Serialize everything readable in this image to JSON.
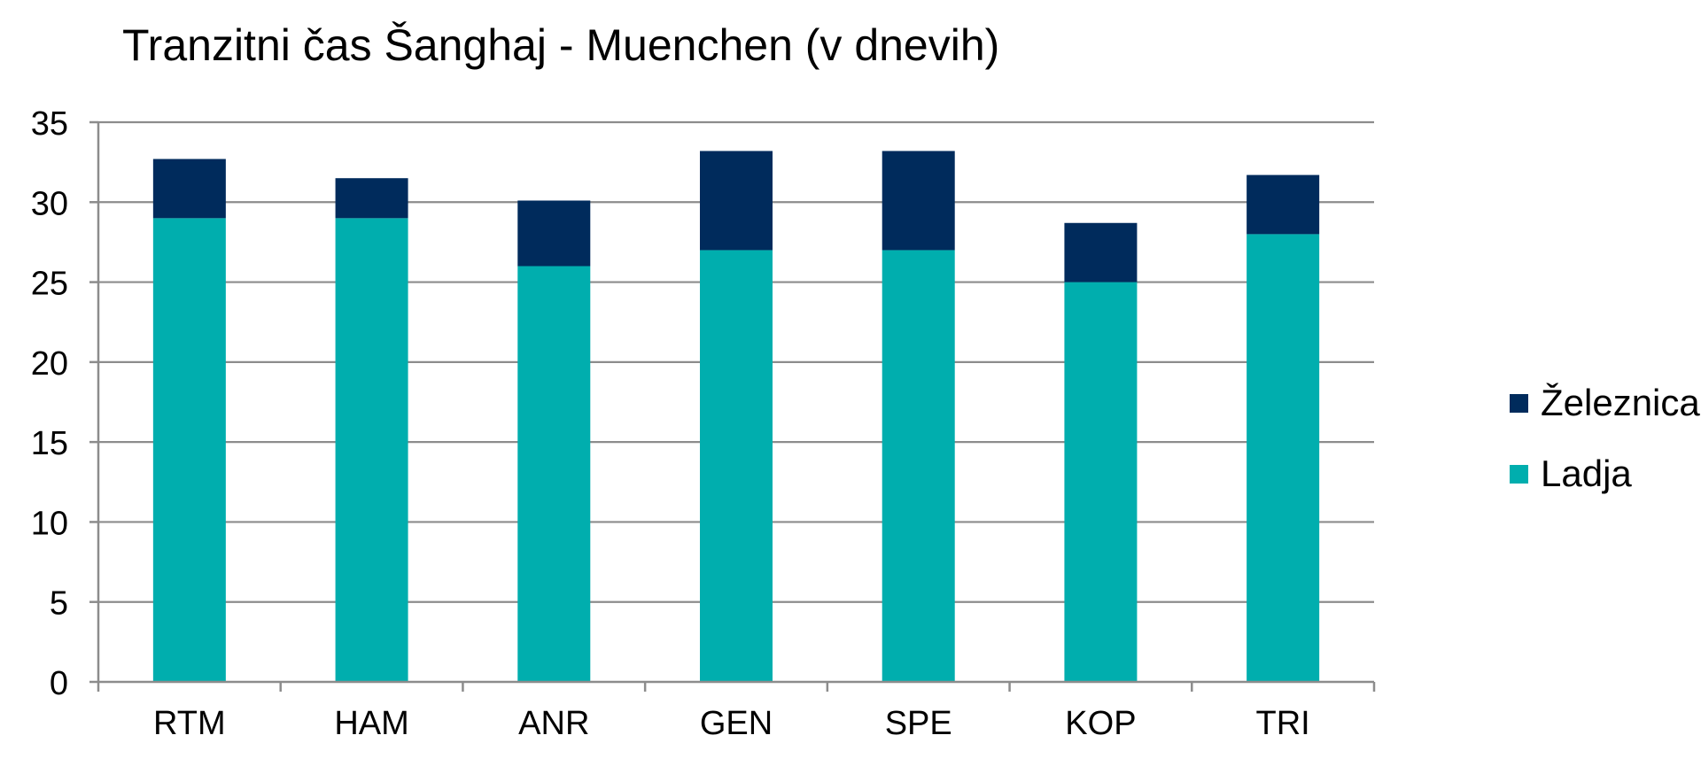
{
  "chart_data": {
    "type": "bar",
    "stacked": true,
    "title": "Tranzitni čas Šanghaj - Muenchen (v dnevih)",
    "xlabel": "",
    "ylabel": "",
    "categories": [
      "RTM",
      "HAM",
      "ANR",
      "GEN",
      "SPE",
      "KOP",
      "TRI"
    ],
    "series": [
      {
        "name": "Ladja",
        "color": "#00AEAE",
        "values": [
          29,
          29,
          26,
          27,
          27,
          25,
          28
        ]
      },
      {
        "name": "Železnica",
        "color": "#002B5C",
        "values": [
          3.7,
          2.5,
          4.1,
          6.2,
          6.2,
          3.7,
          3.7
        ]
      }
    ],
    "ylim": [
      0,
      35
    ],
    "yticks": [
      0,
      5,
      10,
      15,
      20,
      25,
      30,
      35
    ],
    "grid": true,
    "legend_position": "right",
    "legend_order": [
      "Železnica",
      "Ladja"
    ]
  }
}
